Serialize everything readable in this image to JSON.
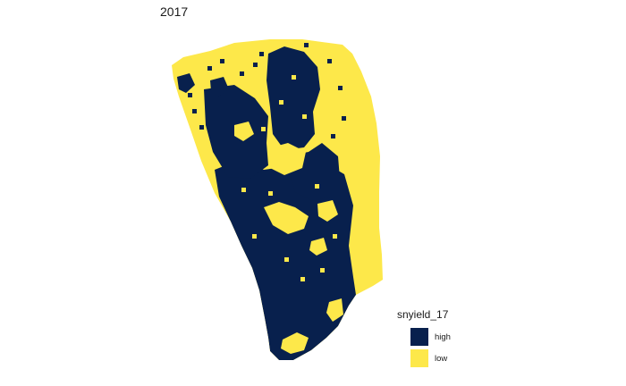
{
  "title": "2017",
  "legend": {
    "title": "snyield_17",
    "items": [
      {
        "label": "high",
        "color": "#08204d"
      },
      {
        "label": "low",
        "color": "#fde84a"
      }
    ]
  },
  "colors": {
    "high": "#08204d",
    "low": "#fde84a",
    "background": "#ffffff"
  }
}
